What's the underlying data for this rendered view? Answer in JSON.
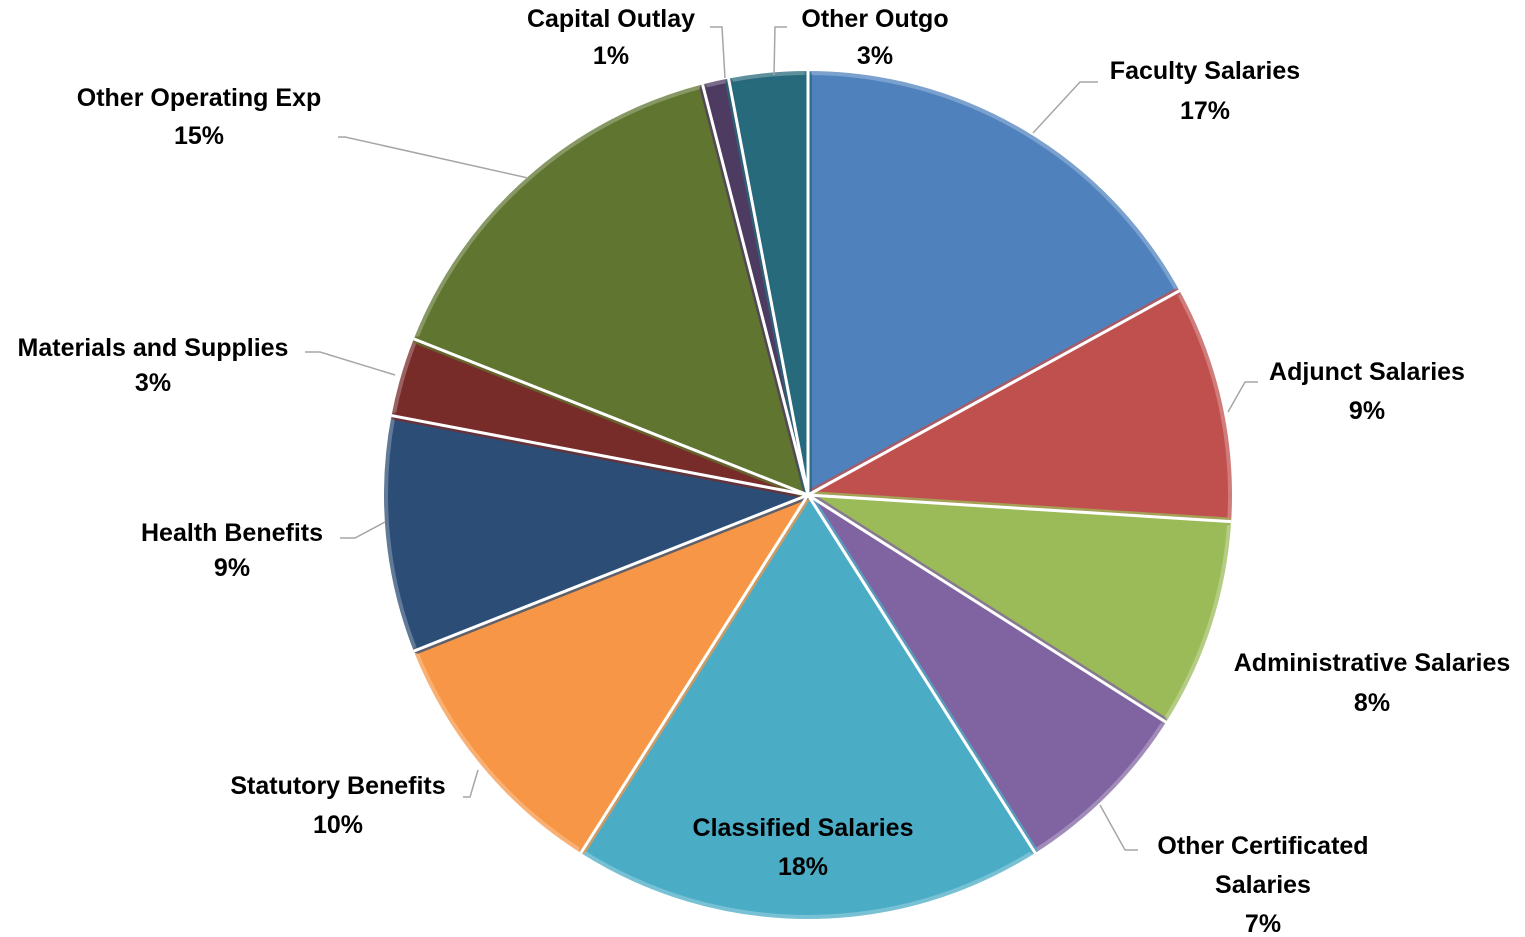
{
  "chart_data": {
    "type": "pie",
    "categories": [
      "Faculty Salaries",
      "Adjunct Salaries",
      "Administrative Salaries",
      "Other Certificated Salaries",
      "Classified Salaries",
      "Statutory Benefits",
      "Health Benefits",
      "Materials and Supplies",
      "Other Operating Exp",
      "Capital Outlay",
      "Other Outgo"
    ],
    "values": [
      17,
      9,
      8,
      7,
      18,
      10,
      9,
      3,
      15,
      1,
      3
    ],
    "value_labels": [
      "17%",
      "9%",
      "8%",
      "7%",
      "18%",
      "10%",
      "9%",
      "3%",
      "15%",
      "1%",
      "3%"
    ],
    "colors": [
      "#4f81bd",
      "#c0504d",
      "#9bbb59",
      "#8064a2",
      "#4bacc6",
      "#f79646",
      "#2c4d75",
      "#772c2a",
      "#5f7530",
      "#4d3b62",
      "#276a7c"
    ]
  }
}
